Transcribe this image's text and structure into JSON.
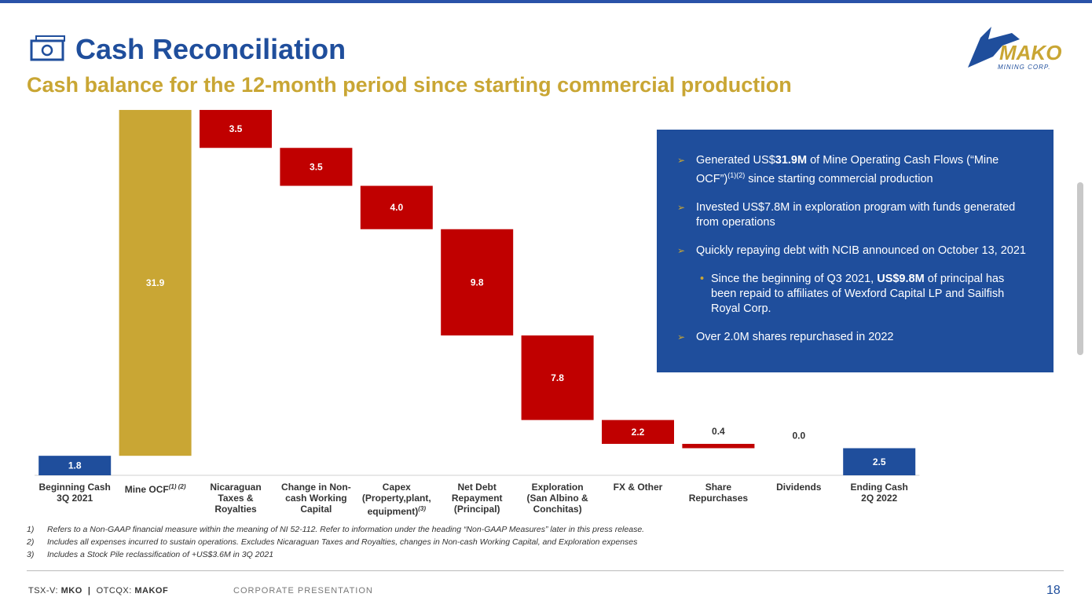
{
  "header": {
    "title": "Cash Reconciliation",
    "subtitle": "Cash balance for the 12-month period since starting commercial production"
  },
  "logo": {
    "name": "MAKO",
    "tagline": "MINING CORP."
  },
  "chart_data": {
    "type": "waterfall",
    "categories": [
      "Beginning Cash\n3Q 2021",
      "Mine OCF",
      "Nicaraguan\nTaxes &\nRoyalties",
      "Change in Non-\ncash Working\nCapital",
      "Capex\n(Property,plant,\nequipment)",
      "Net Debt\nRepayment\n(Principal)",
      "Exploration\n(San Albino &\nConchitas)",
      "FX & Other",
      "Share\nRepurchases",
      "Dividends",
      "Ending Cash\n2Q 2022"
    ],
    "category_notes": [
      null,
      "(1) (2)",
      null,
      null,
      "(3)",
      null,
      null,
      null,
      null,
      null,
      null
    ],
    "values": [
      1.8,
      31.9,
      -3.5,
      -3.5,
      -4.0,
      -9.8,
      -7.8,
      -2.2,
      -0.4,
      0.0,
      2.5
    ],
    "value_labels": [
      "1.8",
      "31.9",
      "3.5",
      "3.5",
      "4.0",
      "9.8",
      "7.8",
      "2.2",
      "0.4",
      "0.0",
      "2.5"
    ],
    "colors": {
      "total": "#1f4e9c",
      "increase": "#c9a634",
      "decrease": "#c00000"
    }
  },
  "info_box": {
    "bullets": [
      {
        "parts": [
          "Generated US$",
          "31.9M",
          " of Mine Operating Cash Flows (“Mine OCF”)",
          "(1)(2)",
          " since starting commercial production"
        ]
      },
      {
        "parts": [
          "Invested US$7.8M in exploration program with funds generated from operations"
        ]
      },
      {
        "parts": [
          "Quickly repaying debt with NCIB announced on October 13, 2021"
        ]
      },
      {
        "parts": [
          "Over 2.0M shares repurchased in 2022"
        ]
      }
    ],
    "sub_bullet": {
      "parts": [
        "Since the beginning of Q3 2021, ",
        "US$9.8M",
        " of principal has been repaid to affiliates of Wexford Capital LP and Sailfish Royal Corp."
      ]
    }
  },
  "footnotes": [
    {
      "marker": "1)",
      "text": "Refers to a Non-GAAP financial measure within the meaning of NI 52-112. Refer to information under the heading “Non-GAAP Measures” later in this press release."
    },
    {
      "marker": "2)",
      "text": "Includes all expenses incurred to sustain operations. Excludes Nicaraguan Taxes and Royalties, changes in Non-cash Working Capital, and Exploration expenses"
    },
    {
      "marker": "3)",
      "text": "Includes a Stock Pile reclassification of +US$3.6M in 3Q 2021"
    }
  ],
  "footer": {
    "tsx_label": "TSX-V: ",
    "tsx": "MKO",
    "separator": "|",
    "otc_label": "OTCQX: ",
    "otc": "MAKOF",
    "section": "CORPORATE PRESENTATION",
    "page": "18"
  }
}
